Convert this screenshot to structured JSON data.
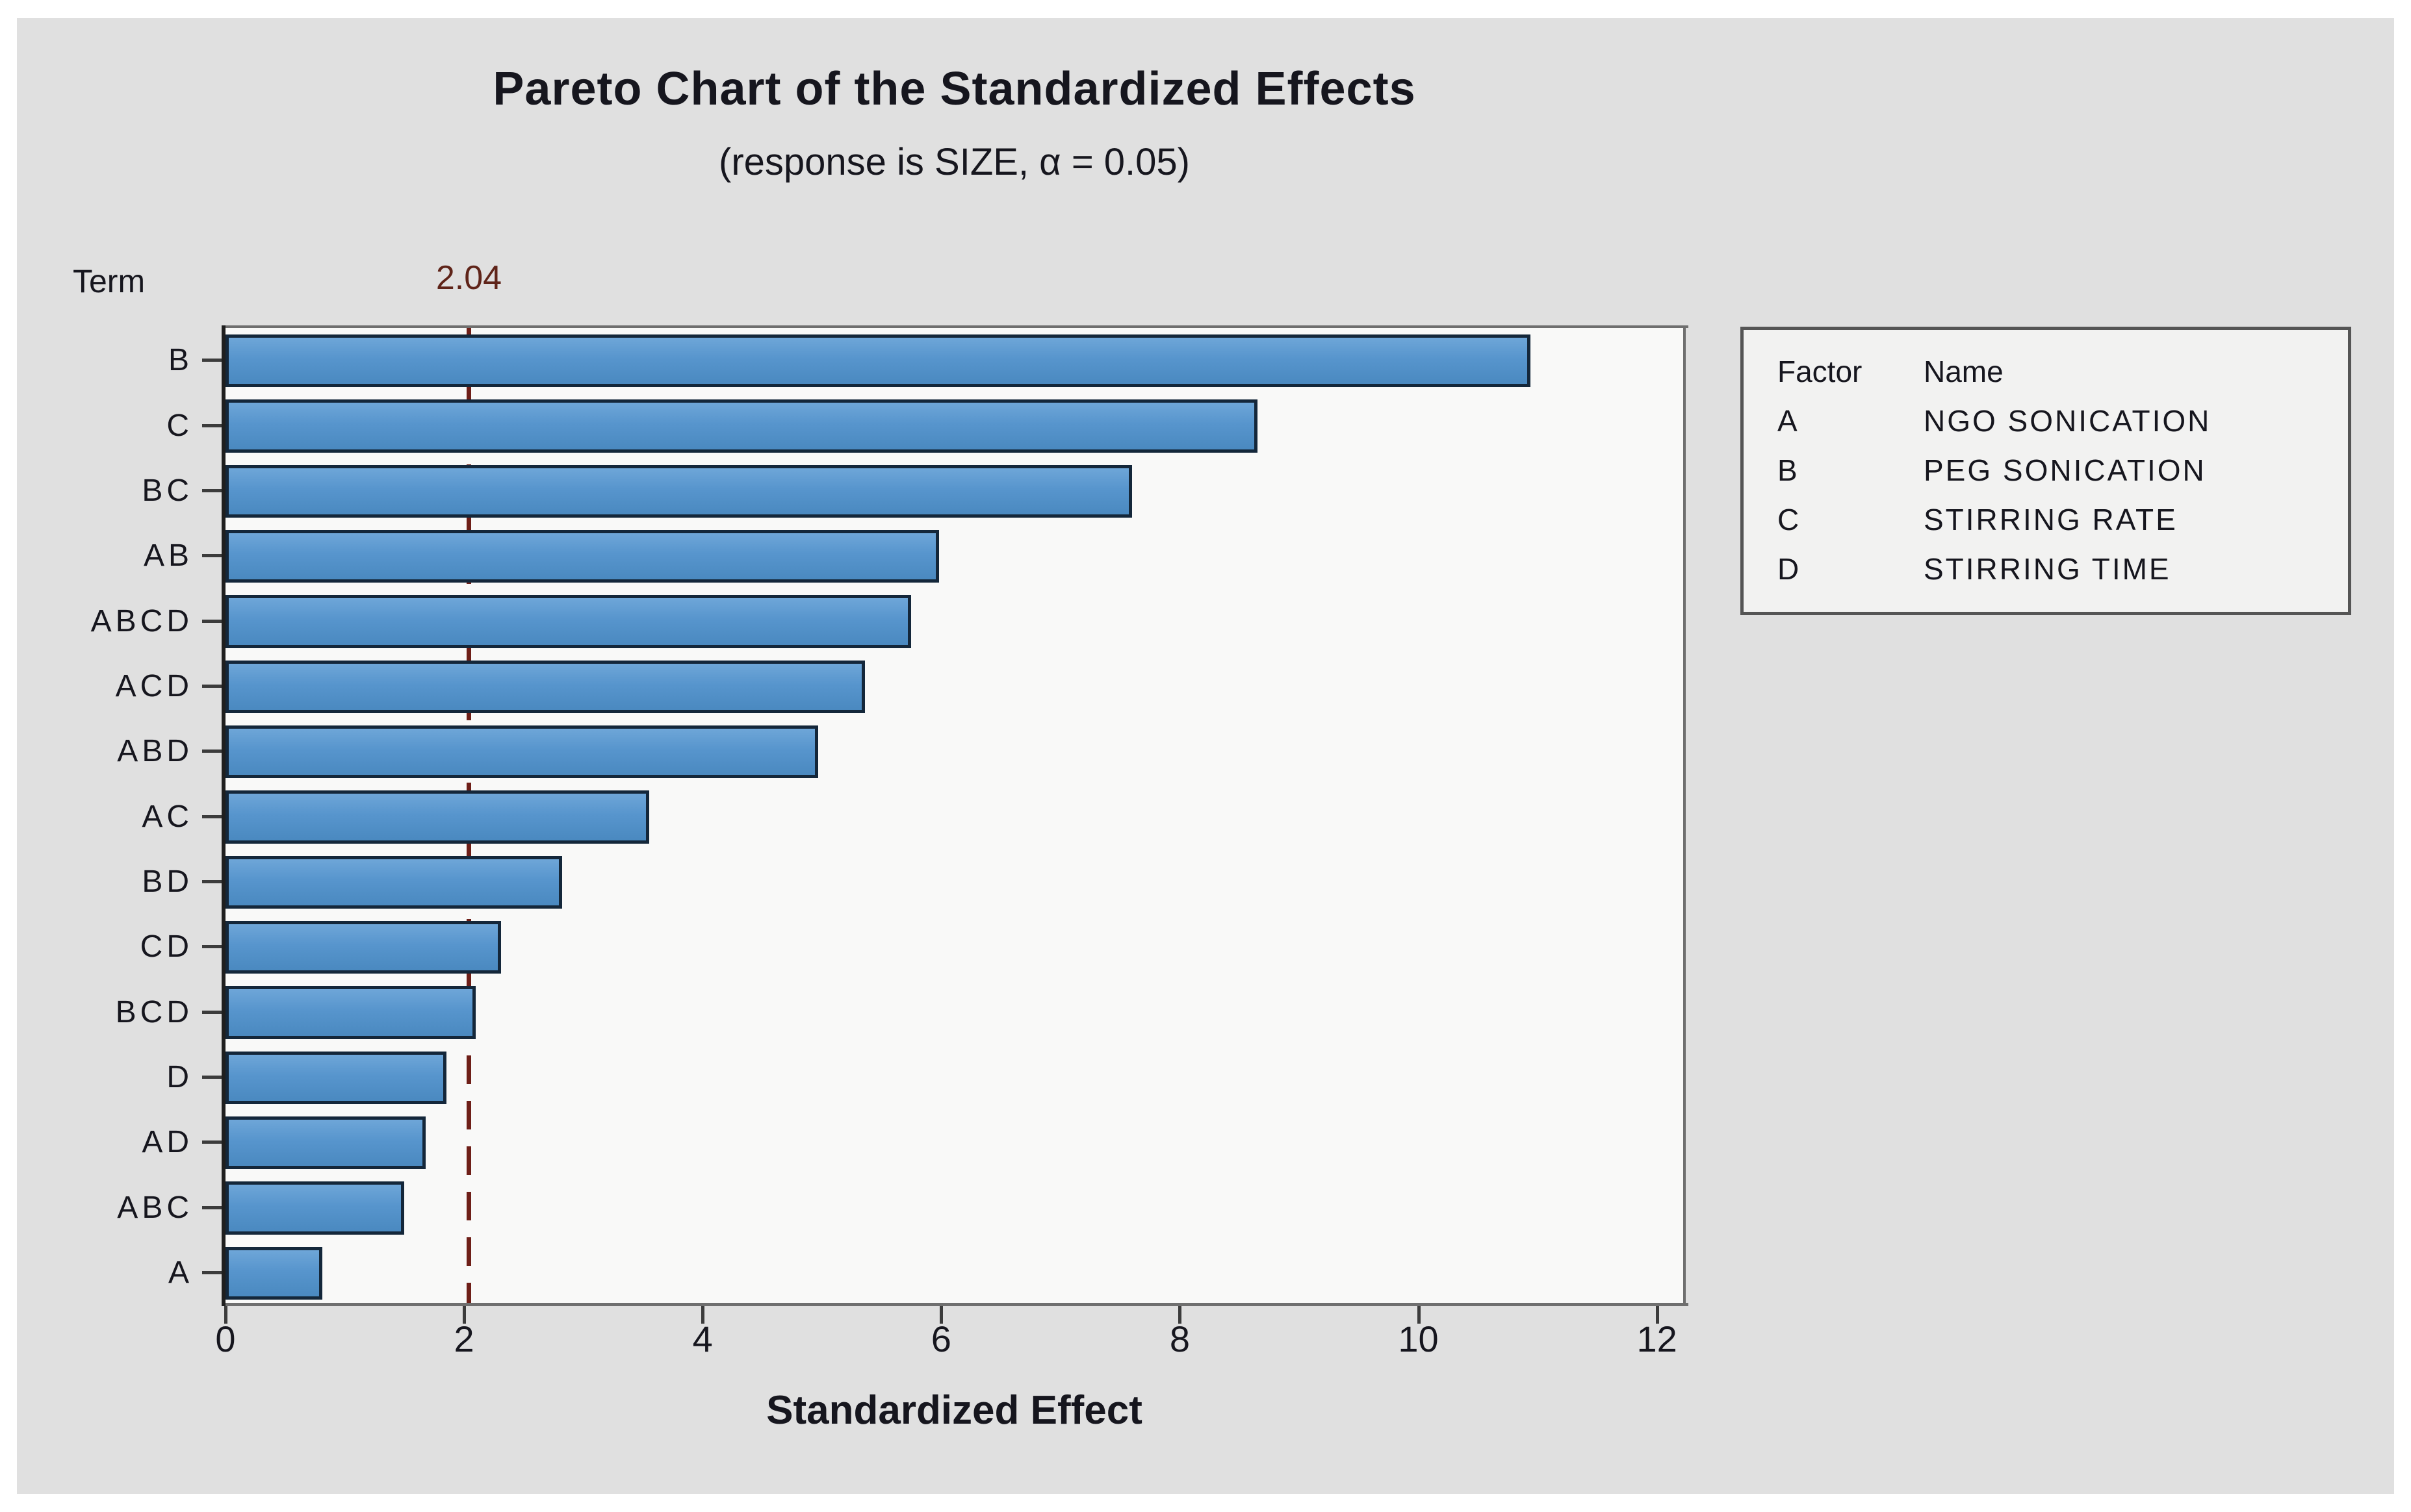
{
  "figure": {
    "title": "Pareto Chart of the Standardized Effects",
    "subtitle": "(response is SIZE, α = 0.05)",
    "term_axis_label": "Term",
    "xlabel": "Standardized Effect"
  },
  "chart_data": {
    "type": "bar",
    "orientation": "horizontal",
    "title": "Pareto Chart of the Standardized Effects",
    "subtitle": "(response is SIZE, α = 0.05)",
    "categories": [
      "B",
      "C",
      "BC",
      "AB",
      "ABCD",
      "ACD",
      "ABD",
      "AC",
      "BD",
      "CD",
      "BCD",
      "D",
      "AD",
      "ABC",
      "A"
    ],
    "values": [
      10.94,
      8.65,
      7.6,
      5.98,
      5.75,
      5.36,
      4.97,
      3.55,
      2.82,
      2.31,
      2.1,
      1.85,
      1.68,
      1.5,
      0.81
    ],
    "xlabel": "Standardized Effect",
    "ylabel": "Term",
    "xlim": [
      0,
      12.22
    ],
    "xticks": [
      0,
      2,
      4,
      6,
      8,
      10,
      12
    ],
    "reference_line": {
      "value": 2.04,
      "label": "2.04"
    },
    "grid": false,
    "legend_position": "right"
  },
  "legend": {
    "headers": [
      "Factor",
      "Name"
    ],
    "rows": [
      [
        "A",
        "NGO SONICATION"
      ],
      [
        "B",
        "PEG SONICATION"
      ],
      [
        "C",
        "STIRRING RATE"
      ],
      [
        "D",
        "STIRRING TIME"
      ]
    ]
  },
  "colors": {
    "figure_bg": "#e0e0e0",
    "plot_bg": "#f9f9f8",
    "bar_fill": "#5795cd",
    "bar_fill_light": "#6ea6d8",
    "bar_fill_dark": "#4a89c0",
    "bar_border": "#14273a",
    "reference_line": "#6e1f18",
    "reference_text": "#5f2419",
    "frame": "#6f6f6f",
    "axis": "#1f1f1f",
    "tick": "#3c3c3c",
    "text": "#16161e",
    "legend_bg": "#f2f2f1",
    "legend_border": "#555555"
  }
}
